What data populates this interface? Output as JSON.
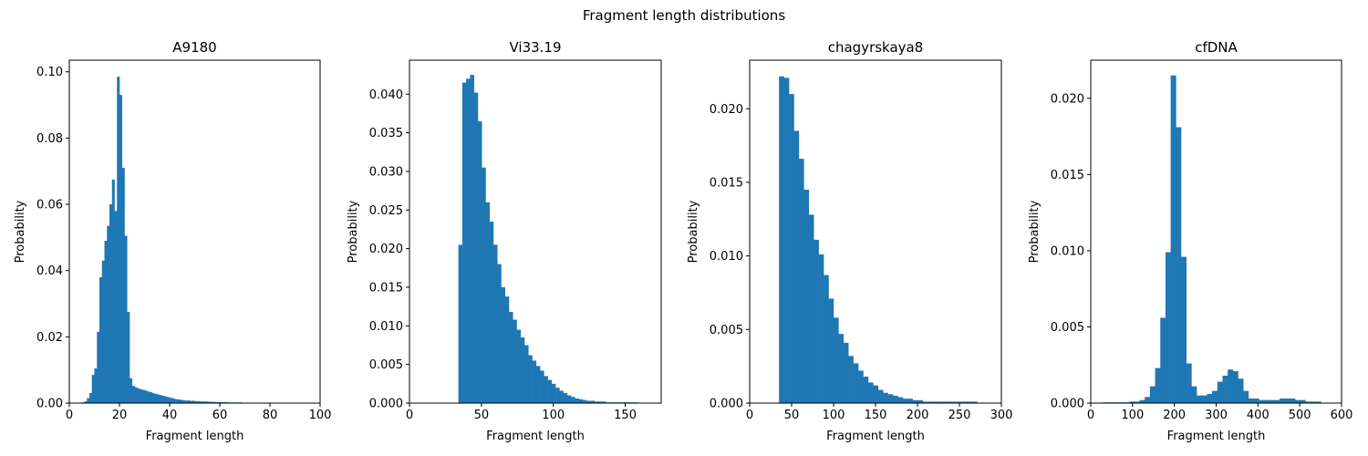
{
  "figure": {
    "suptitle": "Fragment length distributions",
    "bar_color": "#1f77b4"
  },
  "chart_data": [
    {
      "type": "bar",
      "title": "A9180",
      "xlabel": "Fragment length",
      "ylabel": "Probability",
      "xlim": [
        0,
        100
      ],
      "ylim": [
        0,
        0.1035
      ],
      "xticks": [
        0,
        20,
        40,
        60,
        80,
        100
      ],
      "yticks": [
        0.0,
        0.02,
        0.04,
        0.06,
        0.08,
        0.1
      ],
      "ytick_labels": [
        "0.00",
        "0.02",
        "0.04",
        "0.06",
        "0.08",
        "0.10"
      ],
      "bin_start": 4,
      "bin_width": 1,
      "values": [
        0.0001,
        0.0002,
        0.0005,
        0.0015,
        0.003,
        0.0085,
        0.0105,
        0.0215,
        0.038,
        0.043,
        0.049,
        0.0535,
        0.06,
        0.0675,
        0.058,
        0.0985,
        0.093,
        0.071,
        0.0505,
        0.0275,
        0.0075,
        0.0052,
        0.0048,
        0.0045,
        0.0042,
        0.004,
        0.0038,
        0.0035,
        0.0033,
        0.003,
        0.0028,
        0.0026,
        0.0024,
        0.0022,
        0.002,
        0.0018,
        0.0016,
        0.0014,
        0.0012,
        0.0011,
        0.001,
        0.0009,
        0.0008,
        0.0008,
        0.0007,
        0.0007,
        0.0006,
        0.0006,
        0.0005,
        0.0005,
        0.0005,
        0.0004,
        0.0004,
        0.0004,
        0.0003,
        0.0003,
        0.0003,
        0.0003,
        0.0003,
        0.0002,
        0.0002,
        0.0002,
        0.0002,
        0.0002,
        0.0002,
        0.0001,
        0.0001,
        0.0001,
        0.0001,
        0.0001,
        0.0001,
        0.0001,
        0.0001,
        0.0001,
        0.0001,
        0.0001,
        0.0001,
        0.0001,
        0.0001,
        0.0001,
        0.0001,
        0.0001,
        0.0001,
        0.0001,
        0.0001,
        0.0001,
        0.0001,
        0.0001,
        0.0001,
        0.0001,
        0.0001,
        0.0001,
        0.0001,
        0.0001
      ]
    },
    {
      "type": "bar",
      "title": "Vi33.19",
      "xlabel": "Fragment length",
      "ylabel": "Probability",
      "xlim": [
        0,
        175
      ],
      "ylim": [
        0,
        0.0444
      ],
      "xticks": [
        0,
        50,
        100,
        150
      ],
      "yticks": [
        0.0,
        0.005,
        0.01,
        0.015,
        0.02,
        0.025,
        0.03,
        0.035,
        0.04
      ],
      "ytick_labels": [
        "0.000",
        "0.005",
        "0.010",
        "0.015",
        "0.020",
        "0.025",
        "0.030",
        "0.035",
        "0.040"
      ],
      "bin_start": 34,
      "bin_width": 2.7,
      "values": [
        0.0205,
        0.0415,
        0.042,
        0.0425,
        0.0402,
        0.0365,
        0.0305,
        0.026,
        0.0235,
        0.0205,
        0.018,
        0.015,
        0.0138,
        0.0118,
        0.0108,
        0.0095,
        0.0085,
        0.0075,
        0.0062,
        0.0055,
        0.0048,
        0.0042,
        0.0035,
        0.003,
        0.0025,
        0.002,
        0.0016,
        0.0013,
        0.001,
        0.0008,
        0.0006,
        0.0005,
        0.0004,
        0.0003,
        0.0003,
        0.0002,
        0.0002,
        0.0002,
        0.0001,
        0.0001,
        0.0001,
        0.0001,
        0.0001,
        0.0001,
        0.0001,
        0.0001
      ]
    },
    {
      "type": "bar",
      "title": "chagyrskaya8",
      "xlabel": "Fragment length",
      "ylabel": "Probability",
      "xlim": [
        0,
        300
      ],
      "ylim": [
        0,
        0.0233
      ],
      "xticks": [
        0,
        50,
        100,
        150,
        200,
        250,
        300
      ],
      "yticks": [
        0.0,
        0.005,
        0.01,
        0.015,
        0.02
      ],
      "ytick_labels": [
        "0.000",
        "0.005",
        "0.010",
        "0.015",
        "0.020"
      ],
      "bin_start": 35,
      "bin_width": 5.9,
      "values": [
        0.0222,
        0.0221,
        0.021,
        0.0185,
        0.0166,
        0.0145,
        0.0128,
        0.0111,
        0.0101,
        0.0087,
        0.0071,
        0.0058,
        0.0047,
        0.0041,
        0.0032,
        0.0027,
        0.0022,
        0.0018,
        0.0014,
        0.0012,
        0.0009,
        0.0007,
        0.0006,
        0.0005,
        0.0004,
        0.0003,
        0.0003,
        0.0002,
        0.0002,
        0.0001,
        0.0001,
        0.0001,
        0.0001,
        0.0001,
        0.0001,
        0.0001,
        0.0001,
        0.0001,
        0.0001,
        0.0001
      ]
    },
    {
      "type": "bar",
      "title": "cfDNA",
      "xlabel": "Fragment length",
      "ylabel": "Probability",
      "xlim": [
        0,
        600
      ],
      "ylim": [
        0,
        0.0225
      ],
      "xticks": [
        0,
        100,
        200,
        300,
        400,
        500,
        600
      ],
      "yticks": [
        0.0,
        0.005,
        0.01,
        0.015,
        0.02
      ],
      "ytick_labels": [
        "0.000",
        "0.005",
        "0.010",
        "0.015",
        "0.020"
      ],
      "bin_start": 30,
      "bin_width": 12.4,
      "values": [
        5e-05,
        5e-05,
        5e-05,
        5e-05,
        5e-05,
        0.0001,
        0.0001,
        0.0002,
        0.0004,
        0.0011,
        0.0023,
        0.0056,
        0.0099,
        0.0215,
        0.0181,
        0.0096,
        0.0026,
        0.0011,
        0.0005,
        0.0005,
        0.0006,
        0.0008,
        0.0014,
        0.0018,
        0.0022,
        0.0021,
        0.0016,
        0.0008,
        0.0003,
        0.0003,
        0.0002,
        0.0002,
        0.0002,
        0.0002,
        0.0003,
        0.0003,
        0.0003,
        0.0002,
        0.0002,
        0.0001,
        0.0001,
        0.0001
      ]
    }
  ]
}
